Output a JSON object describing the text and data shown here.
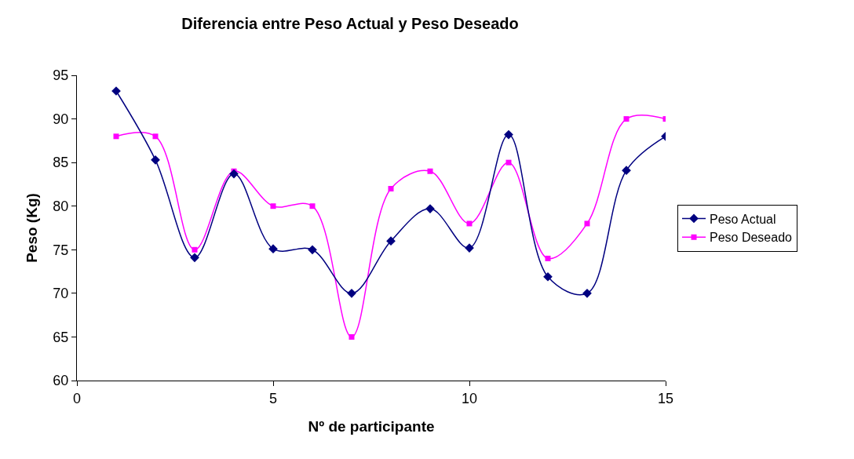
{
  "chart_data": {
    "type": "line",
    "title": "Diferencia entre Peso Actual y Peso Deseado",
    "xlabel": "Nº de participante",
    "ylabel": "Peso (Kg)",
    "x": [
      1,
      2,
      3,
      4,
      5,
      6,
      7,
      8,
      9,
      10,
      11,
      12,
      13,
      14,
      15
    ],
    "series": [
      {
        "name": "Peso Actual",
        "color": "#000080",
        "marker": "diamond",
        "values": [
          93.2,
          85.3,
          74.1,
          83.7,
          75.1,
          75,
          70,
          76,
          79.7,
          75.2,
          88.2,
          71.9,
          70,
          84.1,
          88
        ]
      },
      {
        "name": "Peso Deseado",
        "color": "#ff00ff",
        "marker": "square",
        "values": [
          88,
          88,
          75,
          84,
          80,
          80,
          65,
          82,
          84,
          78,
          85,
          74,
          78,
          90,
          90
        ]
      }
    ],
    "xlim": [
      0,
      15
    ],
    "xticks": [
      0,
      5,
      10,
      15
    ],
    "ylim": [
      60,
      95
    ],
    "yticks": [
      60,
      65,
      70,
      75,
      80,
      85,
      90,
      95
    ],
    "grid": false,
    "legend": "right",
    "line_style": "solid"
  }
}
